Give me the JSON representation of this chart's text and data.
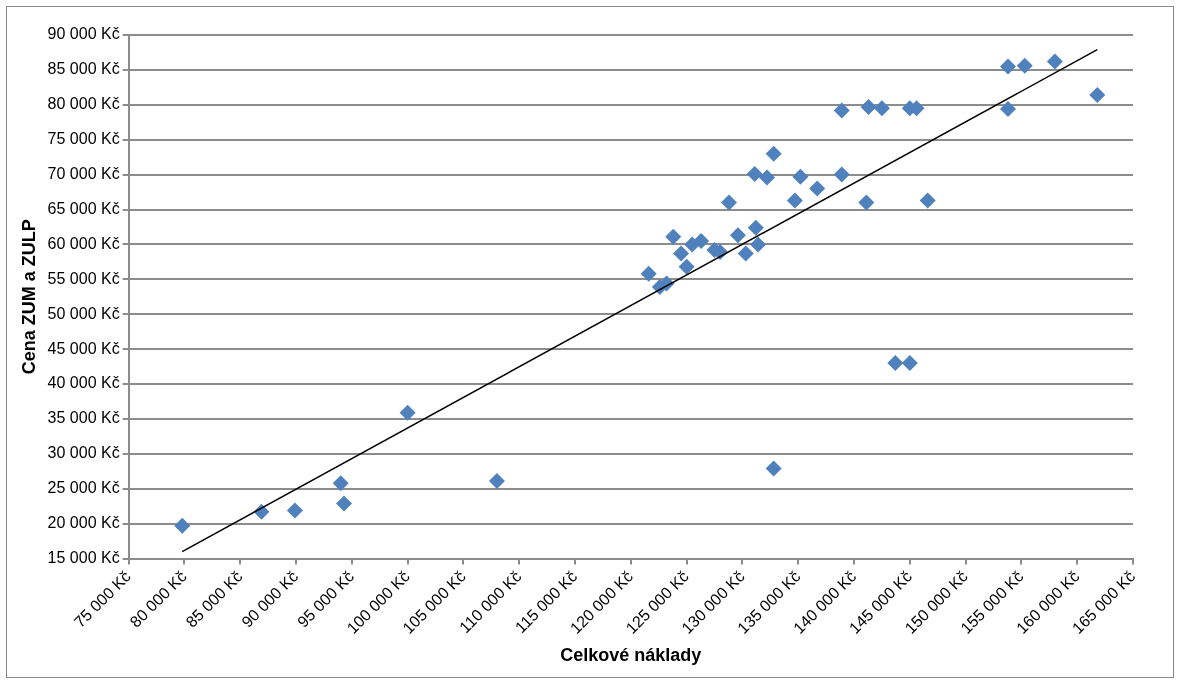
{
  "chart_data": {
    "type": "scatter",
    "xlabel": "Celkové náklady",
    "ylabel": "Cena ZUM a ZULP",
    "series": [
      {
        "color": "#4f81bd",
        "marker": "diamond",
        "x": [
          79800,
          86900,
          89900,
          94000,
          94300,
          100000,
          108000,
          132800,
          121600,
          122600,
          123200,
          123800,
          124500,
          125000,
          125500,
          126300,
          127500,
          128000,
          128800,
          129600,
          130300,
          131200,
          131400,
          131100,
          132200,
          132800,
          134700,
          135200,
          136700,
          138900,
          141100,
          138900,
          141300,
          142500,
          145000,
          145600,
          153800,
          155300,
          153800,
          158000,
          161800,
          143700,
          145000,
          146600
        ],
        "values": [
          19700,
          21700,
          21900,
          25800,
          22900,
          35900,
          26100,
          27900,
          55800,
          53900,
          54400,
          61100,
          58700,
          56800,
          60000,
          60500,
          59200,
          58900,
          66000,
          61300,
          58700,
          62400,
          60000,
          70100,
          69600,
          73000,
          66300,
          69700,
          68000,
          70000,
          66000,
          79200,
          79700,
          79500,
          79500,
          79500,
          85500,
          85600,
          79400,
          86200,
          81400,
          43000,
          43000,
          66300
        ]
      },
      {
        "type": "line",
        "color": "#000000",
        "marker": "none",
        "x": [
          79800,
          161800
        ],
        "values": [
          16000,
          87900
        ]
      }
    ],
    "xlim": [
      75000,
      165000
    ],
    "xticks": [
      {
        "value": 75000,
        "label": "75 000 Kč"
      },
      {
        "value": 80000,
        "label": "80 000 Kč"
      },
      {
        "value": 85000,
        "label": "85 000 Kč"
      },
      {
        "value": 90000,
        "label": "90 000 Kč"
      },
      {
        "value": 95000,
        "label": "95 000 Kč"
      },
      {
        "value": 100000,
        "label": "100 000 Kč"
      },
      {
        "value": 105000,
        "label": "105 000 Kč"
      },
      {
        "value": 110000,
        "label": "110 000 Kč"
      },
      {
        "value": 115000,
        "label": "115 000 Kč"
      },
      {
        "value": 120000,
        "label": "120 000 Kč"
      },
      {
        "value": 125000,
        "label": "125 000 Kč"
      },
      {
        "value": 130000,
        "label": "130 000 Kč"
      },
      {
        "value": 135000,
        "label": "135 000 Kč"
      },
      {
        "value": 140000,
        "label": "140 000 Kč"
      },
      {
        "value": 145000,
        "label": "145 000 Kč"
      },
      {
        "value": 150000,
        "label": "150 000 Kč"
      },
      {
        "value": 155000,
        "label": "155 000 Kč"
      },
      {
        "value": 160000,
        "label": "160 000 Kč"
      },
      {
        "value": 165000,
        "label": "165 000 Kč"
      }
    ],
    "ylim": [
      15000,
      90000
    ],
    "yticks": [
      {
        "value": 15000,
        "label": "15 000 Kč"
      },
      {
        "value": 20000,
        "label": "20 000 Kč"
      },
      {
        "value": 25000,
        "label": "25 000 Kč"
      },
      {
        "value": 30000,
        "label": "30 000 Kč"
      },
      {
        "value": 35000,
        "label": "35 000 Kč"
      },
      {
        "value": 40000,
        "label": "40 000 Kč"
      },
      {
        "value": 45000,
        "label": "45 000 Kč"
      },
      {
        "value": 50000,
        "label": "50 000 Kč"
      },
      {
        "value": 55000,
        "label": "55 000 Kč"
      },
      {
        "value": 60000,
        "label": "60 000 Kč"
      },
      {
        "value": 65000,
        "label": "65 000 Kč"
      },
      {
        "value": 70000,
        "label": "70 000 Kč"
      },
      {
        "value": 75000,
        "label": "75 000 Kč"
      },
      {
        "value": 80000,
        "label": "80 000 Kč"
      },
      {
        "value": 85000,
        "label": "85 000 Kč"
      },
      {
        "value": 90000,
        "label": "90 000 Kč"
      }
    ],
    "grid": "y"
  }
}
